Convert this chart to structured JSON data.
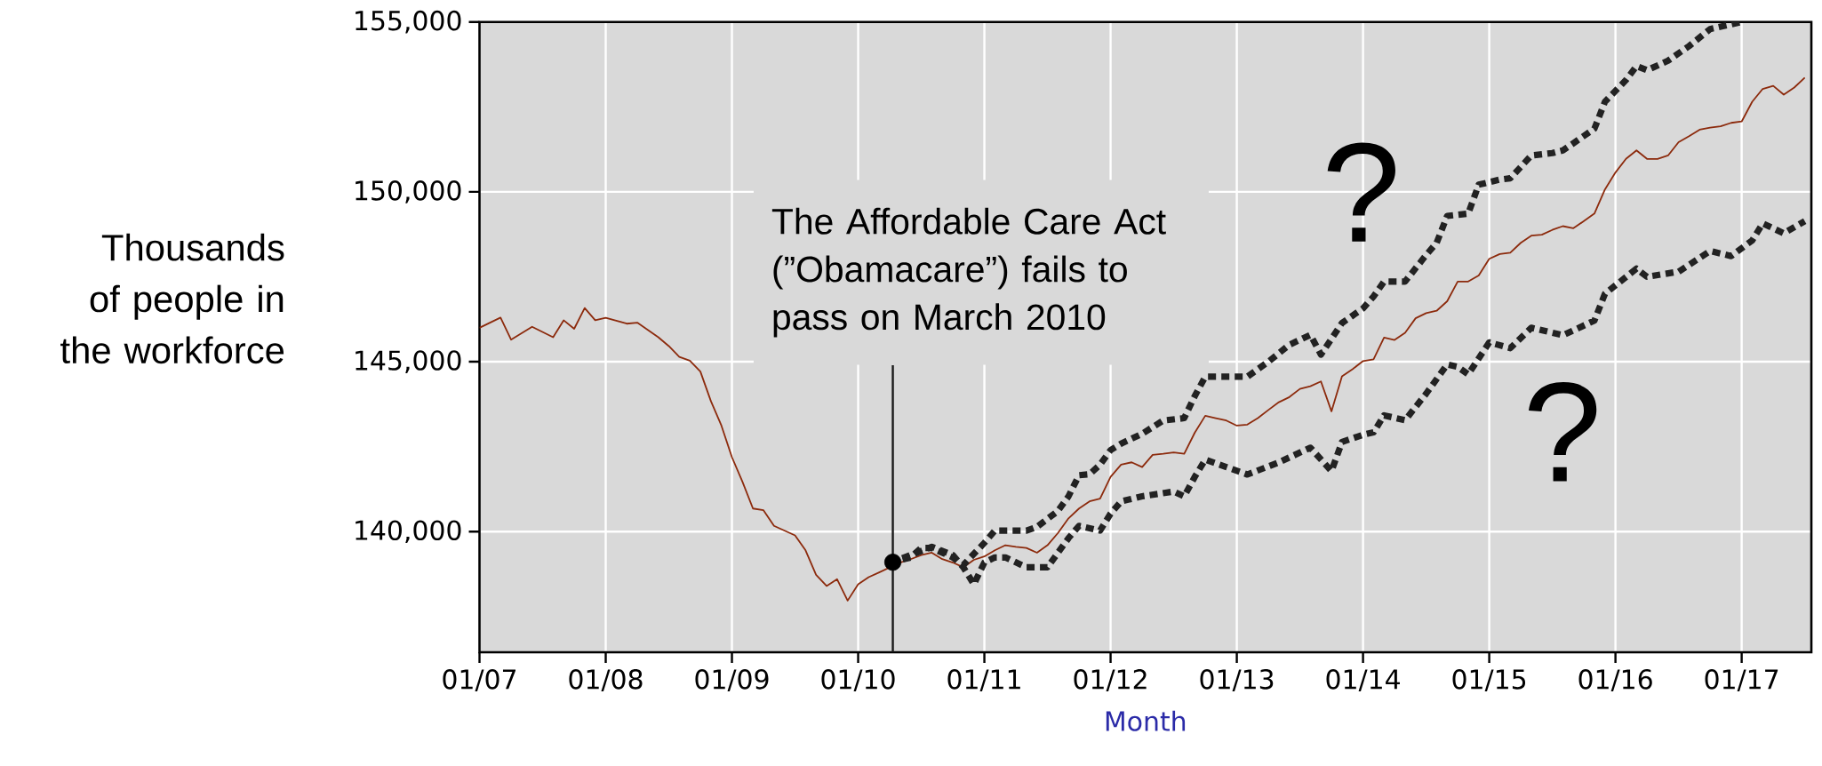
{
  "chart_data": {
    "type": "line",
    "xlabel": "Month",
    "ylabel": "Thousands of people in the workforce",
    "xlim": [
      "2007-01",
      "2017-07-20"
    ],
    "ylim": [
      136450,
      155000
    ],
    "xticks": [
      {
        "value": "2007-01",
        "label": "01/07"
      },
      {
        "value": "2008-01",
        "label": "01/08"
      },
      {
        "value": "2009-01",
        "label": "01/09"
      },
      {
        "value": "2010-01",
        "label": "01/10"
      },
      {
        "value": "2011-01",
        "label": "01/11"
      },
      {
        "value": "2012-01",
        "label": "01/12"
      },
      {
        "value": "2013-01",
        "label": "01/13"
      },
      {
        "value": "2014-01",
        "label": "01/14"
      },
      {
        "value": "2015-01",
        "label": "01/15"
      },
      {
        "value": "2016-01",
        "label": "01/16"
      },
      {
        "value": "2017-01",
        "label": "01/17"
      }
    ],
    "yticks": [
      {
        "value": 140000,
        "label": "140,000"
      },
      {
        "value": 145000,
        "label": "145,000"
      },
      {
        "value": 150000,
        "label": "150,000"
      },
      {
        "value": 155000,
        "label": "155,000"
      }
    ],
    "grid": true,
    "marker": "none",
    "series": [
      {
        "color": "#8c2a0c",
        "line_style": "solid",
        "x": [
          "2007-01",
          "2007-03",
          "2007-04",
          "2007-06",
          "2007-08",
          "2007-09",
          "2007-10",
          "2007-11",
          "2007-12",
          "2008-01",
          "2008-03",
          "2008-04",
          "2008-06",
          "2008-07",
          "2008-08",
          "2008-09",
          "2008-10",
          "2008-11",
          "2008-12",
          "2009-01",
          "2009-02",
          "2009-03",
          "2009-04",
          "2009-05",
          "2009-07",
          "2009-08",
          "2009-09",
          "2009-10",
          "2009-11",
          "2009-12",
          "2010-01",
          "2010-02",
          "2010-03",
          "2010-04",
          "2010-05",
          "2010-06",
          "2010-07",
          "2010-08",
          "2010-09",
          "2010-10",
          "2010-11",
          "2010-12",
          "2011-01",
          "2011-02",
          "2011-03",
          "2011-04",
          "2011-05",
          "2011-06",
          "2011-07",
          "2011-08",
          "2011-09",
          "2011-10",
          "2011-11",
          "2011-12",
          "2012-01",
          "2012-02",
          "2012-03",
          "2012-04",
          "2012-05",
          "2012-06",
          "2012-07",
          "2012-08",
          "2012-09",
          "2012-10",
          "2012-11",
          "2012-12",
          "2013-01",
          "2013-02",
          "2013-03",
          "2013-04",
          "2013-05",
          "2013-06",
          "2013-07",
          "2013-08",
          "2013-09",
          "2013-10",
          "2013-11",
          "2013-12",
          "2014-01",
          "2014-02",
          "2014-03",
          "2014-04",
          "2014-05",
          "2014-06",
          "2014-07",
          "2014-08",
          "2014-09",
          "2014-10",
          "2014-11",
          "2014-12",
          "2015-01",
          "2015-02",
          "2015-03",
          "2015-04",
          "2015-05",
          "2015-06",
          "2015-07",
          "2015-08",
          "2015-09",
          "2015-10",
          "2015-11",
          "2015-12",
          "2016-01",
          "2016-02",
          "2016-03",
          "2016-04",
          "2016-05",
          "2016-06",
          "2016-07",
          "2016-08",
          "2016-09",
          "2016-10",
          "2016-11",
          "2016-12",
          "2017-01",
          "2017-02",
          "2017-03",
          "2017-04",
          "2017-05",
          "2017-06",
          "2017-07"
        ],
        "values": [
          146000,
          146300,
          145650,
          146030,
          145720,
          146220,
          145970,
          146580,
          146220,
          146290,
          146120,
          146150,
          145720,
          145460,
          145140,
          145030,
          144710,
          143840,
          143120,
          142190,
          141470,
          140680,
          140630,
          140170,
          139890,
          139450,
          138730,
          138400,
          138600,
          137970,
          138450,
          138660,
          138800,
          null,
          139090,
          139190,
          139310,
          139380,
          139190,
          139090,
          138950,
          139170,
          139270,
          139450,
          139600,
          139550,
          139520,
          139380,
          139600,
          139960,
          140390,
          140680,
          140890,
          140970,
          141610,
          141970,
          142040,
          141900,
          142260,
          142290,
          142330,
          142290,
          142910,
          143410,
          143340,
          143270,
          143120,
          143150,
          143340,
          143580,
          143810,
          143960,
          144200,
          144280,
          144420,
          143540,
          144570,
          144780,
          145020,
          145070,
          145710,
          145640,
          145850,
          146280,
          146430,
          146500,
          146780,
          147360,
          147360,
          147540,
          148030,
          148170,
          148210,
          148500,
          148710,
          148740,
          148880,
          148990,
          148930,
          149140,
          149360,
          150070,
          150570,
          150970,
          151220,
          150970,
          150970,
          151070,
          151460,
          151640,
          151830,
          151890,
          151930,
          152030,
          152070,
          152650,
          153030,
          153120,
          152860,
          153070,
          153360
        ]
      },
      {
        "color": "#222222",
        "line_style": "dotted",
        "x": [
          "2010-04",
          "2010-06",
          "2010-07",
          "2010-08",
          "2010-09",
          "2010-10",
          "2010-11",
          "2011-01",
          "2011-02",
          "2011-03",
          "2011-05",
          "2011-06",
          "2011-08",
          "2011-09",
          "2011-10",
          "2011-11",
          "2011-12",
          "2012-01",
          "2012-02",
          "2012-04",
          "2012-06",
          "2012-08",
          "2012-09",
          "2012-10",
          "2013-02",
          "2013-04",
          "2013-06",
          "2013-08",
          "2013-09",
          "2013-11",
          "2014-01",
          "2014-02",
          "2014-03",
          "2014-05",
          "2014-07",
          "2014-08",
          "2014-09",
          "2014-11",
          "2014-12",
          "2015-02",
          "2015-03",
          "2015-05",
          "2015-07",
          "2015-08",
          "2015-09",
          "2015-11",
          "2015-12",
          "2016-02",
          "2016-03",
          "2016-04",
          "2016-06",
          "2016-08",
          "2016-10",
          "2016-11",
          "2016-12",
          "2017-01"
        ],
        "values": [
          139090,
          139240,
          139520,
          139520,
          139380,
          139240,
          139020,
          139670,
          140030,
          140030,
          140030,
          140140,
          140610,
          141040,
          141660,
          141690,
          141970,
          142400,
          142590,
          142880,
          143270,
          143340,
          143990,
          144560,
          144560,
          145000,
          145500,
          145790,
          145210,
          146140,
          146570,
          146920,
          147360,
          147360,
          148140,
          148500,
          149290,
          149360,
          150210,
          150360,
          150400,
          151070,
          151140,
          151220,
          151430,
          151860,
          152650,
          153290,
          153700,
          153580,
          153860,
          154290,
          154790,
          154860,
          154930,
          155000
        ]
      },
      {
        "color": "#222222",
        "line_style": "dotted",
        "x": [
          "2010-04",
          "2010-06",
          "2010-08",
          "2010-10",
          "2010-11",
          "2010-12",
          "2011-01",
          "2011-02",
          "2011-03",
          "2011-05",
          "2011-07",
          "2011-09",
          "2011-10",
          "2011-12",
          "2012-01",
          "2012-02",
          "2012-04",
          "2012-07",
          "2012-08",
          "2012-09",
          "2012-10",
          "2012-12",
          "2013-02",
          "2013-05",
          "2013-08",
          "2013-10",
          "2013-11",
          "2014-01",
          "2014-02",
          "2014-03",
          "2014-05",
          "2014-07",
          "2014-09",
          "2014-10",
          "2014-11",
          "2015-01",
          "2015-03",
          "2015-05",
          "2015-08",
          "2015-11",
          "2015-12",
          "2016-03",
          "2016-04",
          "2016-07",
          "2016-10",
          "2016-12",
          "2017-02",
          "2017-03",
          "2017-05",
          "2017-07"
        ],
        "values": [
          139090,
          139310,
          139550,
          139310,
          138950,
          138450,
          139090,
          139240,
          139240,
          138950,
          138950,
          139810,
          140170,
          140030,
          140530,
          140890,
          141040,
          141180,
          141040,
          141610,
          142120,
          141900,
          141680,
          142040,
          142470,
          141780,
          142640,
          142850,
          142920,
          143420,
          143280,
          144060,
          144920,
          144850,
          144630,
          145570,
          145400,
          146000,
          145780,
          146210,
          147000,
          147740,
          147500,
          147650,
          148260,
          148110,
          148570,
          149070,
          148780,
          149140
        ]
      },
      {
        "type": "scatter",
        "marker": "circle",
        "color": "#000000",
        "x": [
          "2010-04-10"
        ],
        "values": [
          139100
        ]
      }
    ],
    "ref_lines": [
      {
        "axis": "x",
        "value": "2010-04-10",
        "label": "The Affordable Care Act (”Obamacare”) fails to pass on March 2010",
        "color": "#1a1a1a"
      }
    ],
    "annotations": [
      "?",
      "?"
    ]
  }
}
